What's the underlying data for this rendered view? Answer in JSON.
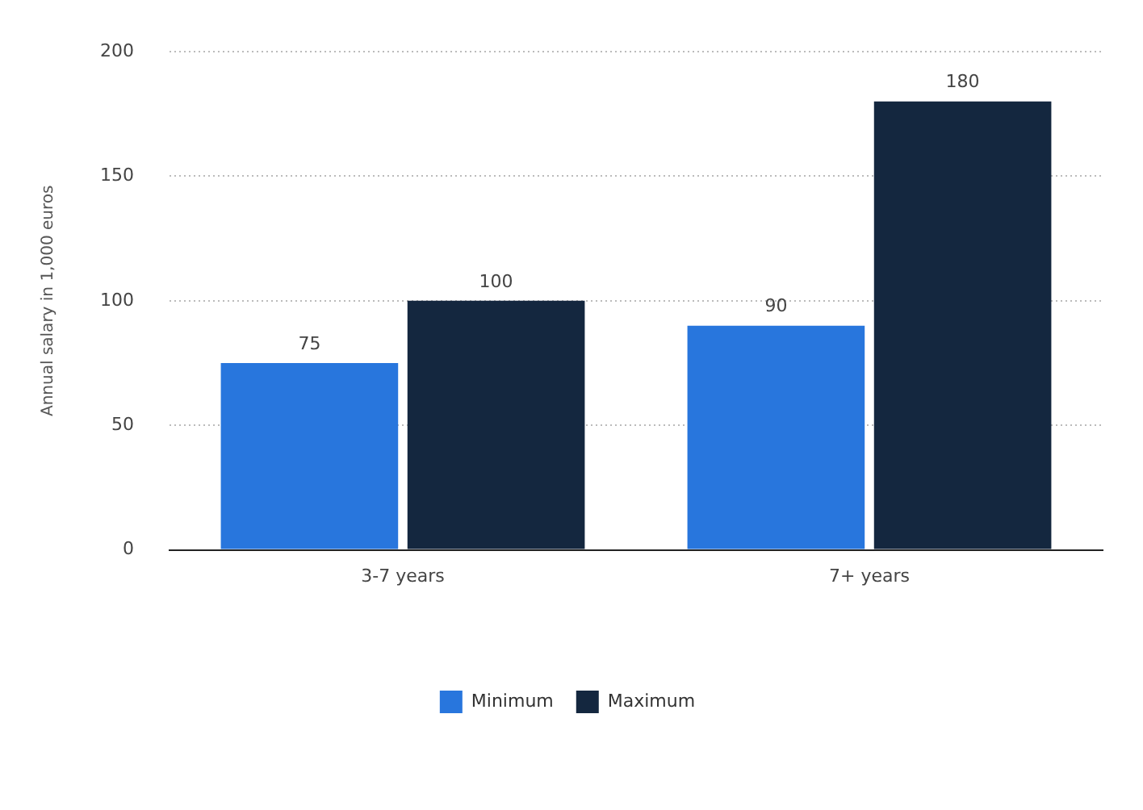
{
  "chart_data": {
    "type": "bar",
    "ylabel": "Annual salary in 1,000 euros",
    "categories": [
      "3-7 years",
      "7+ years"
    ],
    "series": [
      {
        "name": "Minimum",
        "color": "#2876dd",
        "values": [
          75,
          90
        ]
      },
      {
        "name": "Maximum",
        "color": "#14273f",
        "values": [
          100,
          180
        ]
      }
    ],
    "ylim": [
      0,
      200
    ],
    "yticks": [
      0,
      50,
      100,
      150,
      200
    ],
    "grid": "y",
    "legend": "bottom",
    "data_labels": true
  }
}
